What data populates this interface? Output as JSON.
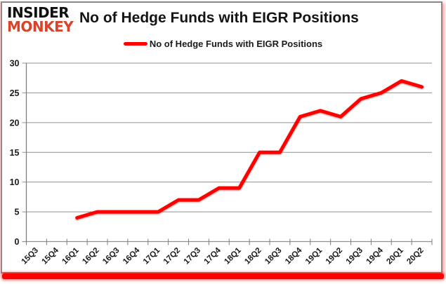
{
  "header": {
    "logo_line1": "INSIDER",
    "logo_line2": "MONKEY",
    "title": "No of Hedge Funds with EIGR Positions"
  },
  "legend": {
    "label": "No of Hedge Funds with EIGR Positions",
    "swatch_color": "#ff0000"
  },
  "colors": {
    "line": "#ff0000",
    "gridline": "#909090",
    "axis": "#7f7f7f",
    "tick_text": "#1a1a1a",
    "logo_accent": "#d8432a",
    "bottom_bar": "#ff0000"
  },
  "chart_data": {
    "type": "line",
    "title": "No of Hedge Funds with EIGR Positions",
    "xlabel": "",
    "ylabel": "",
    "ylim": [
      0,
      30
    ],
    "yticks": [
      0,
      5,
      10,
      15,
      20,
      25,
      30
    ],
    "grid": true,
    "legend_position": "top-center",
    "categories": [
      "15Q3",
      "15Q4",
      "16Q1",
      "16Q2",
      "16Q3",
      "16Q4",
      "17Q1",
      "17Q2",
      "17Q3",
      "17Q4",
      "18Q1",
      "18Q2",
      "18Q3",
      "18Q4",
      "19Q1",
      "19Q2",
      "19Q3",
      "19Q4",
      "20Q1",
      "20Q2"
    ],
    "series": [
      {
        "name": "No of Hedge Funds with EIGR Positions",
        "color": "#ff0000",
        "values": [
          null,
          null,
          4,
          5,
          5,
          5,
          5,
          7,
          7,
          9,
          9,
          15,
          15,
          21,
          22,
          21,
          24,
          25,
          27,
          26
        ]
      }
    ]
  }
}
